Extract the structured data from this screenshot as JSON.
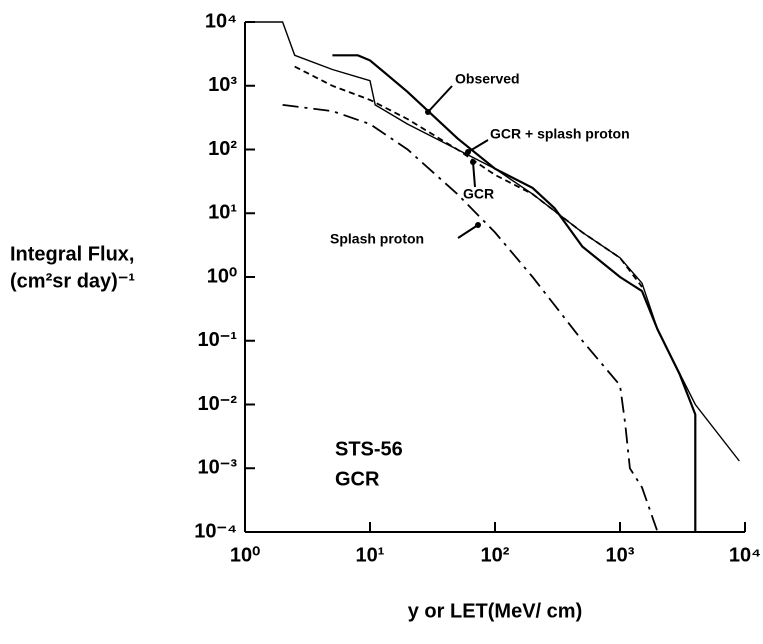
{
  "chart_data": {
    "type": "line",
    "xlabel": "y or LET(MeV/ cm)",
    "ylabel": [
      "Integral Flux,",
      "(cm²sr day)⁻¹"
    ],
    "xscale": "log",
    "yscale": "log",
    "xlim": [
      1,
      10000
    ],
    "ylim": [
      0.0001,
      10000
    ],
    "xticks": [
      {
        "value": 1,
        "label": "10⁰"
      },
      {
        "value": 10,
        "label": "10¹"
      },
      {
        "value": 100,
        "label": "10²"
      },
      {
        "value": 1000,
        "label": "10³"
      },
      {
        "value": 10000,
        "label": "10⁴"
      }
    ],
    "yticks": [
      {
        "value": 0.0001,
        "label": "10⁻⁴"
      },
      {
        "value": 0.001,
        "label": "10⁻³"
      },
      {
        "value": 0.01,
        "label": "10⁻²"
      },
      {
        "value": 0.1,
        "label": "10⁻¹"
      },
      {
        "value": 1,
        "label": "10⁰"
      },
      {
        "value": 10,
        "label": "10¹"
      },
      {
        "value": 100,
        "label": "10²"
      },
      {
        "value": 1000,
        "label": "10³"
      },
      {
        "value": 10000,
        "label": "10⁴"
      }
    ],
    "series": [
      {
        "name": "Observed",
        "color": "#000000",
        "linestyle": "solid",
        "width": 2.2,
        "x": [
          5,
          8,
          10,
          20,
          50,
          100,
          200,
          300,
          500,
          1000,
          1500,
          2000,
          3000,
          4000,
          4000
        ],
        "values": [
          3000,
          3000,
          2500,
          800,
          150,
          50,
          25,
          12,
          3,
          1,
          0.6,
          0.15,
          0.03,
          0.007,
          0.0001
        ]
      },
      {
        "name": "GCR + splash proton",
        "color": "#000000",
        "linestyle": "solid",
        "width": 1.4,
        "x": [
          1,
          2,
          2.5,
          5,
          10,
          11,
          20,
          50,
          100,
          200,
          500,
          1000,
          1500,
          2000,
          4000,
          9000
        ],
        "values": [
          10000,
          10000,
          3000,
          1800,
          1200,
          500,
          250,
          100,
          50,
          20,
          5,
          2,
          0.8,
          0.15,
          0.01,
          0.0013
        ]
      },
      {
        "name": "GCR",
        "color": "#000000",
        "linestyle": "dashed",
        "width": 1.8,
        "x": [
          2.5,
          5,
          10,
          20,
          50,
          100,
          200,
          500,
          1000,
          1500
        ],
        "values": [
          2000,
          1000,
          600,
          300,
          100,
          40,
          20,
          5,
          2,
          0.7
        ]
      },
      {
        "name": "Splash proton",
        "color": "#000000",
        "linestyle": "dashdot",
        "width": 1.8,
        "x": [
          2,
          5,
          10,
          20,
          50,
          100,
          200,
          500,
          1000,
          1100,
          1200,
          1500,
          2000
        ],
        "values": [
          500,
          400,
          250,
          100,
          20,
          5,
          1,
          0.1,
          0.02,
          0.005,
          0.001,
          0.0005,
          0.0001
        ]
      }
    ],
    "annotations": [
      "STS-56",
      "GCR"
    ]
  }
}
